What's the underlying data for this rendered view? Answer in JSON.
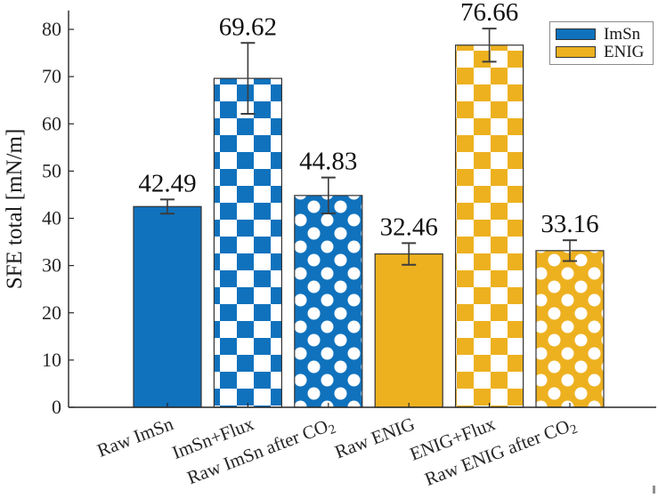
{
  "chart_data": {
    "type": "bar",
    "title": "",
    "ylabel": "SFE total [mN/m]",
    "xlabel": "",
    "ylim": [
      0,
      84
    ],
    "yticks": [
      0,
      10,
      20,
      30,
      40,
      50,
      60,
      70,
      80
    ],
    "grid": false,
    "legend_position": "top-right",
    "categories": [
      "Raw ImSn",
      "ImSn+Flux",
      "Raw ImSn after CO2",
      "Raw ENIG",
      "ENIG+Flux",
      "Raw ENIG after CO2"
    ],
    "series_membership": [
      "ImSn",
      "ImSn",
      "ImSn",
      "ENIG",
      "ENIG",
      "ENIG"
    ],
    "bar_fill_styles": [
      "solid",
      "checker",
      "dots",
      "solid",
      "checker",
      "dots"
    ],
    "values": [
      42.49,
      69.62,
      44.83,
      32.46,
      76.66,
      33.16
    ],
    "error_bars": [
      1.5,
      7.5,
      3.8,
      2.3,
      3.5,
      2.2
    ],
    "legend": [
      {
        "label": "ImSn",
        "color": "#1072BD"
      },
      {
        "label": "ENIG",
        "color": "#EDB120"
      }
    ],
    "colors": {
      "axis": "#262626",
      "text": "#1a1a1a",
      "error_bar": "#3c3c3c",
      "bar_border": "#333333",
      "background": "#ffffff"
    }
  }
}
